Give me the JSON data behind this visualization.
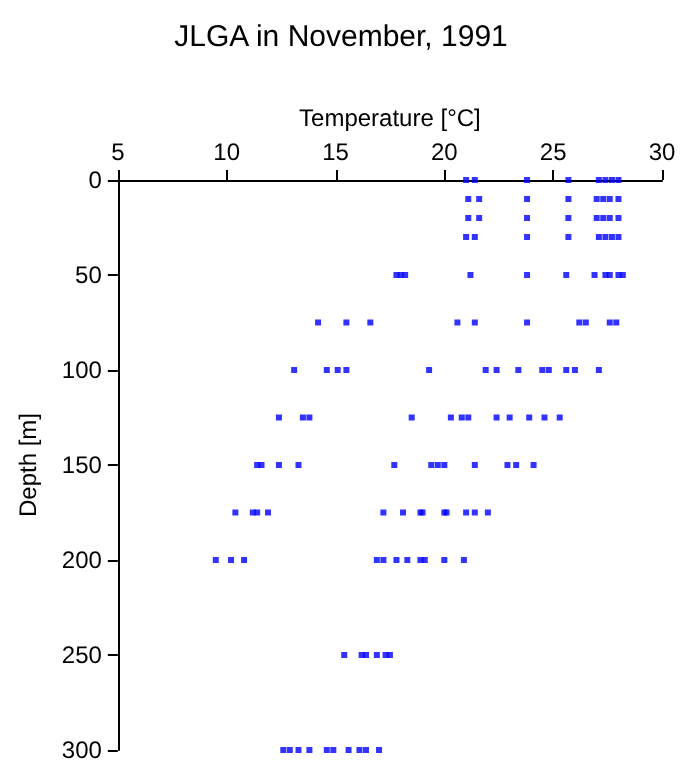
{
  "chart_data": {
    "type": "scatter",
    "title": "JLGA in November, 1991",
    "xlabel": "Temperature [°C]",
    "ylabel": "Depth [m]",
    "xlim": [
      5,
      30
    ],
    "xticks": [
      5,
      10,
      15,
      20,
      25,
      30
    ],
    "ylim": [
      300,
      0
    ],
    "yticks": [
      0,
      50,
      100,
      150,
      200,
      250,
      300
    ],
    "marker": "square",
    "series": [
      {
        "color": "#0000ff",
        "x": [
          21.0,
          21.4,
          23.8,
          25.7,
          27.1,
          27.4,
          27.7,
          28.0,
          21.1,
          21.6,
          23.8,
          25.7,
          27.0,
          27.3,
          27.6,
          28.0,
          21.1,
          21.6,
          23.8,
          25.7,
          27.0,
          27.3,
          27.6,
          28.0,
          21.0,
          21.4,
          23.8,
          25.7,
          27.1,
          27.4,
          27.7,
          28.0,
          17.8,
          18.0,
          18.2,
          21.2,
          23.8,
          25.6,
          26.9,
          27.4,
          27.6,
          28.0,
          28.2,
          14.2,
          15.5,
          16.6,
          20.6,
          21.4,
          23.8,
          26.2,
          26.5,
          27.6,
          27.9,
          13.1,
          14.6,
          15.1,
          15.5,
          19.3,
          21.9,
          22.4,
          23.4,
          24.5,
          24.8,
          25.6,
          26.0,
          27.1,
          12.4,
          13.5,
          13.8,
          18.5,
          20.3,
          20.8,
          21.1,
          22.4,
          23.0,
          23.9,
          24.6,
          25.3,
          11.4,
          11.6,
          12.4,
          13.3,
          17.7,
          19.4,
          19.7,
          20.0,
          21.4,
          22.9,
          23.3,
          24.1,
          10.4,
          11.2,
          11.4,
          11.9,
          17.2,
          18.1,
          18.9,
          19.0,
          20.0,
          20.1,
          21.0,
          21.4,
          22.0,
          9.5,
          10.2,
          10.8,
          16.9,
          17.2,
          17.8,
          18.3,
          18.9,
          19.1,
          20.0,
          20.9,
          15.4,
          16.2,
          16.4,
          16.9,
          17.3,
          17.5,
          12.6,
          12.9,
          13.3,
          13.8,
          14.6,
          14.9,
          15.6,
          16.1,
          16.4,
          17.0
        ],
        "values": [
          0,
          0,
          0,
          0,
          0,
          0,
          0,
          0,
          10,
          10,
          10,
          10,
          10,
          10,
          10,
          10,
          20,
          20,
          20,
          20,
          20,
          20,
          20,
          20,
          30,
          30,
          30,
          30,
          30,
          30,
          30,
          30,
          50,
          50,
          50,
          50,
          50,
          50,
          50,
          50,
          50,
          50,
          50,
          75,
          75,
          75,
          75,
          75,
          75,
          75,
          75,
          75,
          75,
          100,
          100,
          100,
          100,
          100,
          100,
          100,
          100,
          100,
          100,
          100,
          100,
          100,
          125,
          125,
          125,
          125,
          125,
          125,
          125,
          125,
          125,
          125,
          125,
          125,
          150,
          150,
          150,
          150,
          150,
          150,
          150,
          150,
          150,
          150,
          150,
          150,
          175,
          175,
          175,
          175,
          175,
          175,
          175,
          175,
          175,
          175,
          175,
          175,
          175,
          200,
          200,
          200,
          200,
          200,
          200,
          200,
          200,
          200,
          200,
          200,
          250,
          250,
          250,
          250,
          250,
          250,
          300,
          300,
          300,
          300,
          300,
          300,
          300,
          300,
          300,
          300
        ]
      }
    ]
  }
}
